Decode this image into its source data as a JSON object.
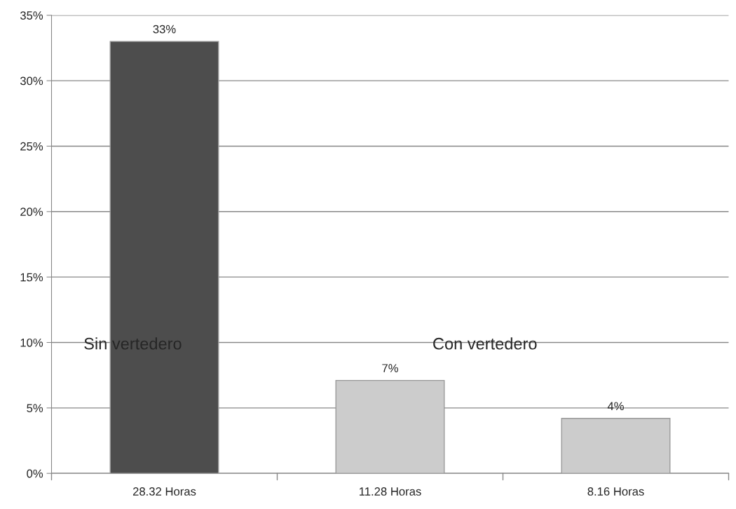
{
  "chart_data": {
    "type": "bar",
    "categories": [
      "28.32 Horas",
      "11.28 Horas",
      "8.16 Horas"
    ],
    "values": [
      33,
      7.1,
      4.2
    ],
    "value_labels": [
      "33%",
      "7%",
      "4%"
    ],
    "colors": [
      "#4d4d4d",
      "#cccccc",
      "#cccccc"
    ],
    "ylim": [
      0,
      35
    ],
    "yticks": [
      {
        "value": 0,
        "label": "0%"
      },
      {
        "value": 5,
        "label": "5%"
      },
      {
        "value": 10,
        "label": "10%"
      },
      {
        "value": 15,
        "label": "15%"
      },
      {
        "value": 20,
        "label": "20%"
      },
      {
        "value": 25,
        "label": "25%"
      },
      {
        "value": 30,
        "label": "30%"
      },
      {
        "value": 35,
        "label": "35%"
      }
    ],
    "grid": "y",
    "legend": false,
    "annotations": [
      "Sin vertedero",
      "Con vertedero"
    ]
  }
}
